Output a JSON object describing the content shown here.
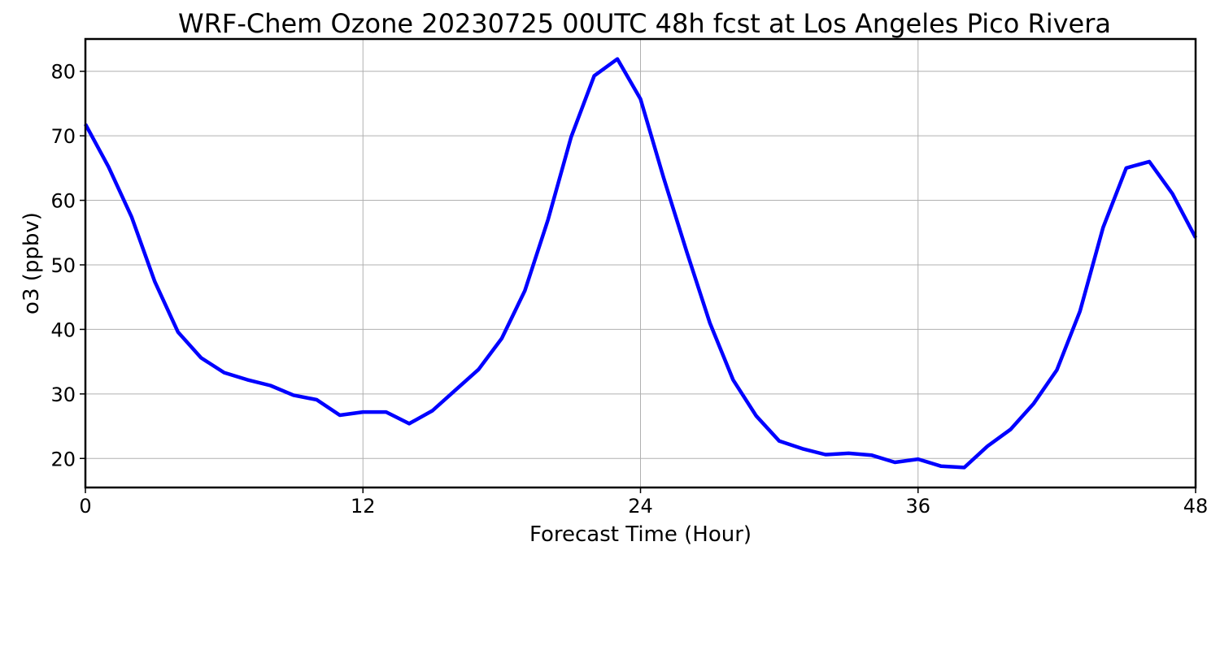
{
  "chart_data": {
    "type": "line",
    "title": "WRF-Chem Ozone  20230725 00UTC 48h fcst at Los Angeles Pico Rivera",
    "xlabel": "Forecast Time (Hour)",
    "ylabel": "o3  (ppbv)",
    "xlim": [
      0,
      48
    ],
    "ylim": [
      15.5,
      85
    ],
    "xticks": [
      0,
      12,
      24,
      36,
      48
    ],
    "xtick_labels": [
      "0",
      "12",
      "24",
      "36",
      "48"
    ],
    "yticks": [
      20,
      30,
      40,
      50,
      60,
      70,
      80
    ],
    "ytick_labels": [
      "20",
      "30",
      "40",
      "50",
      "60",
      "70",
      "80"
    ],
    "grid": true,
    "legend": "none",
    "series": [
      {
        "color": "#0000ff",
        "x": [
          0,
          1,
          2,
          3,
          4,
          5,
          6,
          7,
          8,
          9,
          10,
          11,
          12,
          13,
          14,
          15,
          16,
          17,
          18,
          19,
          20,
          21,
          22,
          23,
          24,
          25,
          26,
          27,
          28,
          29,
          30,
          31,
          32,
          33,
          34,
          35,
          36,
          37,
          38,
          39,
          40,
          41,
          42,
          43,
          44,
          45,
          46,
          47,
          48
        ],
        "y": [
          71.8,
          65.2,
          57.4,
          47.4,
          39.6,
          35.6,
          33.3,
          32.2,
          31.3,
          29.8,
          29.1,
          26.7,
          27.2,
          27.2,
          25.4,
          27.4,
          30.6,
          33.8,
          38.6,
          46.0,
          57.0,
          69.8,
          79.3,
          81.9,
          75.7,
          63.5,
          52.0,
          41.0,
          32.2,
          26.6,
          22.7,
          21.5,
          20.6,
          20.8,
          20.5,
          19.4,
          19.9,
          18.8,
          18.6,
          21.9,
          24.5,
          28.5,
          33.7,
          42.8,
          55.8,
          65.0,
          66.0,
          61.0,
          54.2
        ]
      }
    ]
  }
}
